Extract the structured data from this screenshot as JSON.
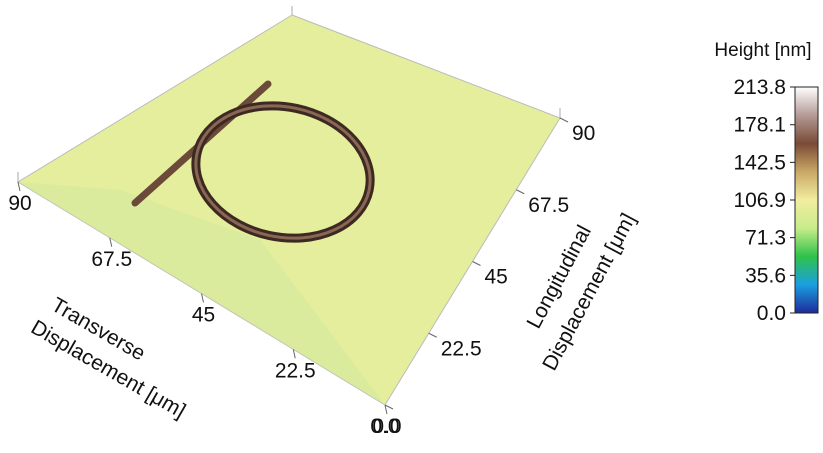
{
  "chart_data": {
    "type": "surface",
    "xlabel": [
      "Transverse",
      "Displacement [μm]"
    ],
    "ylabel": [
      "Longitudinal",
      "Displacement [μm]"
    ],
    "xlim": [
      0,
      90
    ],
    "xticks": [
      {
        "value": 0,
        "label": "0.0"
      },
      22.5,
      45,
      67.5,
      90
    ],
    "ylim": [
      0,
      90
    ],
    "yticks": [
      {
        "value": 0,
        "label": "0.0"
      },
      22.5,
      45,
      67.5,
      90
    ],
    "colorbar": {
      "title": "Height [nm]",
      "lim": [
        0,
        213.8
      ],
      "ticks": [
        {
          "value": 0,
          "label": "0.0"
        },
        35.6,
        71.3,
        106.9,
        142.5,
        178.1,
        213.8
      ],
      "colormap": [
        "#1f2a9a",
        "#1a9fe0",
        "#2fc24a",
        "#c8ec8a",
        "#f2eda0",
        "#c9a866",
        "#7a4a36",
        "#b49a96",
        "#ffffff"
      ]
    }
  }
}
